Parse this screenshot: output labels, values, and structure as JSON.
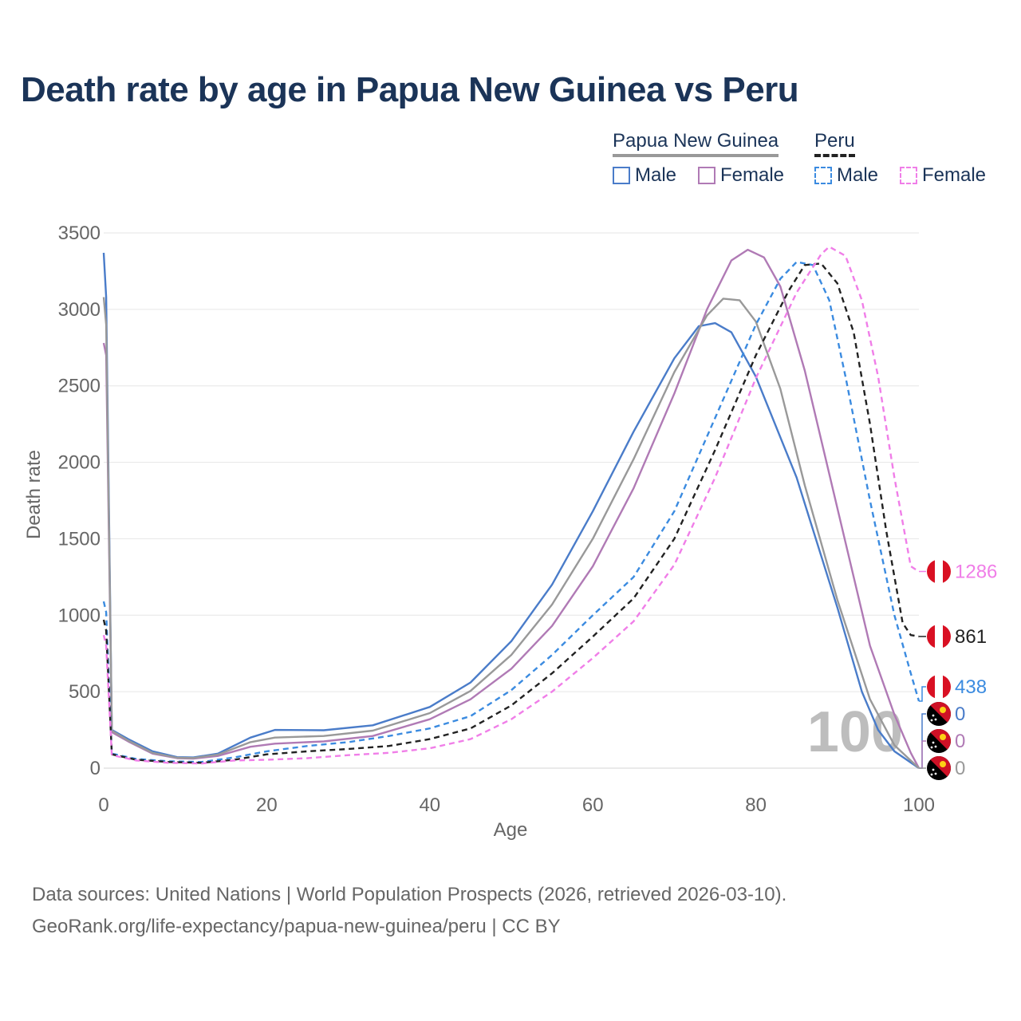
{
  "chart_data": {
    "type": "line",
    "title": "Death rate by age in Papua New Guinea vs Peru",
    "xlabel": "Age",
    "ylabel": "Death rate",
    "xlim": [
      0,
      100
    ],
    "ylim": [
      0,
      3500
    ],
    "x_ticks": [
      "0",
      "20",
      "40",
      "60",
      "80",
      "100"
    ],
    "y_ticks": [
      "0",
      "500",
      "1000",
      "1500",
      "2000",
      "2500",
      "3000",
      "3500"
    ],
    "grid": true,
    "age_overlay": "100",
    "legend": {
      "groups": [
        {
          "name": "Papua New Guinea",
          "items": [
            "Male",
            "Female"
          ]
        },
        {
          "name": "Peru",
          "items": [
            "Male",
            "Female"
          ]
        }
      ]
    },
    "series": [
      {
        "id": "png_male",
        "name": "Papua New Guinea Male",
        "color": "#4a7cc9",
        "dash": false,
        "points": [
          [
            0,
            3370
          ],
          [
            0.3,
            3080
          ],
          [
            1,
            250
          ],
          [
            3,
            190
          ],
          [
            6,
            110
          ],
          [
            9,
            72
          ],
          [
            11,
            70
          ],
          [
            14,
            95
          ],
          [
            18,
            200
          ],
          [
            21,
            250
          ],
          [
            27,
            248
          ],
          [
            33,
            280
          ],
          [
            40,
            400
          ],
          [
            45,
            560
          ],
          [
            50,
            830
          ],
          [
            55,
            1200
          ],
          [
            60,
            1680
          ],
          [
            65,
            2200
          ],
          [
            70,
            2680
          ],
          [
            73,
            2890
          ],
          [
            75,
            2910
          ],
          [
            77,
            2850
          ],
          [
            80,
            2560
          ],
          [
            85,
            1900
          ],
          [
            90,
            1050
          ],
          [
            93,
            500
          ],
          [
            95,
            250
          ],
          [
            97,
            110
          ],
          [
            100,
            0
          ]
        ],
        "end_label": "0"
      },
      {
        "id": "png_female",
        "name": "Papua New Guinea Female",
        "color": "#b07ab5",
        "dash": false,
        "points": [
          [
            0,
            2780
          ],
          [
            0.3,
            2700
          ],
          [
            1,
            235
          ],
          [
            3,
            175
          ],
          [
            6,
            95
          ],
          [
            9,
            65
          ],
          [
            11,
            62
          ],
          [
            14,
            80
          ],
          [
            18,
            140
          ],
          [
            21,
            160
          ],
          [
            27,
            175
          ],
          [
            33,
            210
          ],
          [
            40,
            320
          ],
          [
            45,
            450
          ],
          [
            50,
            650
          ],
          [
            55,
            930
          ],
          [
            60,
            1320
          ],
          [
            65,
            1830
          ],
          [
            70,
            2450
          ],
          [
            74,
            3000
          ],
          [
            77,
            3320
          ],
          [
            79,
            3390
          ],
          [
            81,
            3340
          ],
          [
            83,
            3150
          ],
          [
            86,
            2600
          ],
          [
            90,
            1700
          ],
          [
            94,
            800
          ],
          [
            97,
            350
          ],
          [
            99,
            100
          ],
          [
            100,
            0
          ]
        ],
        "end_label": "0"
      },
      {
        "id": "png_total",
        "name": "Papua New Guinea",
        "color": "#999999",
        "dash": false,
        "points": [
          [
            0,
            3080
          ],
          [
            0.3,
            2900
          ],
          [
            1,
            245
          ],
          [
            3,
            180
          ],
          [
            6,
            100
          ],
          [
            9,
            68
          ],
          [
            11,
            66
          ],
          [
            14,
            88
          ],
          [
            18,
            170
          ],
          [
            21,
            200
          ],
          [
            27,
            210
          ],
          [
            33,
            245
          ],
          [
            40,
            360
          ],
          [
            45,
            505
          ],
          [
            50,
            740
          ],
          [
            55,
            1070
          ],
          [
            60,
            1500
          ],
          [
            65,
            2020
          ],
          [
            70,
            2590
          ],
          [
            74,
            2960
          ],
          [
            76,
            3070
          ],
          [
            78,
            3060
          ],
          [
            80,
            2920
          ],
          [
            83,
            2480
          ],
          [
            86,
            1850
          ],
          [
            90,
            1100
          ],
          [
            94,
            450
          ],
          [
            97,
            150
          ],
          [
            100,
            0
          ]
        ],
        "end_label": "0"
      },
      {
        "id": "peru_male",
        "name": "Peru Male",
        "color": "#3b8be0",
        "dash": true,
        "points": [
          [
            0,
            1090
          ],
          [
            0.3,
            1020
          ],
          [
            1,
            95
          ],
          [
            4,
            60
          ],
          [
            8,
            45
          ],
          [
            12,
            40
          ],
          [
            16,
            70
          ],
          [
            20,
            110
          ],
          [
            25,
            145
          ],
          [
            30,
            170
          ],
          [
            35,
            210
          ],
          [
            40,
            260
          ],
          [
            45,
            340
          ],
          [
            50,
            510
          ],
          [
            55,
            740
          ],
          [
            60,
            1000
          ],
          [
            65,
            1250
          ],
          [
            70,
            1680
          ],
          [
            75,
            2290
          ],
          [
            80,
            2900
          ],
          [
            83,
            3200
          ],
          [
            85,
            3310
          ],
          [
            87,
            3290
          ],
          [
            89,
            3060
          ],
          [
            91,
            2560
          ],
          [
            94,
            1750
          ],
          [
            97,
            1000
          ],
          [
            99,
            620
          ],
          [
            100,
            438
          ]
        ],
        "end_label": "438"
      },
      {
        "id": "peru_total",
        "name": "Peru",
        "color": "#222222",
        "dash": true,
        "points": [
          [
            0,
            970
          ],
          [
            0.3,
            900
          ],
          [
            1,
            90
          ],
          [
            4,
            55
          ],
          [
            8,
            40
          ],
          [
            12,
            35
          ],
          [
            16,
            55
          ],
          [
            20,
            90
          ],
          [
            25,
            110
          ],
          [
            30,
            125
          ],
          [
            35,
            145
          ],
          [
            40,
            190
          ],
          [
            45,
            260
          ],
          [
            50,
            410
          ],
          [
            55,
            620
          ],
          [
            60,
            860
          ],
          [
            65,
            1110
          ],
          [
            70,
            1500
          ],
          [
            75,
            2080
          ],
          [
            80,
            2700
          ],
          [
            84,
            3120
          ],
          [
            86,
            3290
          ],
          [
            88,
            3300
          ],
          [
            90,
            3170
          ],
          [
            92,
            2850
          ],
          [
            94,
            2250
          ],
          [
            96,
            1550
          ],
          [
            98,
            950
          ],
          [
            99,
            870
          ],
          [
            100,
            861
          ]
        ],
        "end_label": "861"
      },
      {
        "id": "peru_female",
        "name": "Peru Female",
        "color": "#f07ee8",
        "dash": true,
        "points": [
          [
            0,
            870
          ],
          [
            0.3,
            800
          ],
          [
            1,
            85
          ],
          [
            4,
            50
          ],
          [
            8,
            35
          ],
          [
            12,
            30
          ],
          [
            16,
            50
          ],
          [
            20,
            55
          ],
          [
            25,
            65
          ],
          [
            30,
            85
          ],
          [
            35,
            100
          ],
          [
            40,
            130
          ],
          [
            45,
            190
          ],
          [
            50,
            320
          ],
          [
            55,
            500
          ],
          [
            60,
            720
          ],
          [
            65,
            960
          ],
          [
            70,
            1330
          ],
          [
            75,
            1900
          ],
          [
            80,
            2550
          ],
          [
            85,
            3110
          ],
          [
            88,
            3360
          ],
          [
            89,
            3410
          ],
          [
            91,
            3350
          ],
          [
            93,
            3060
          ],
          [
            95,
            2560
          ],
          [
            97,
            1900
          ],
          [
            99,
            1320
          ],
          [
            100,
            1286
          ]
        ],
        "end_label": "1286"
      }
    ]
  },
  "footer": {
    "line1": "Data sources: United Nations | World Population Prospects (2026, retrieved 2026-03-10).",
    "line2": "GeoRank.org/life-expectancy/papua-new-guinea/peru | CC BY"
  }
}
